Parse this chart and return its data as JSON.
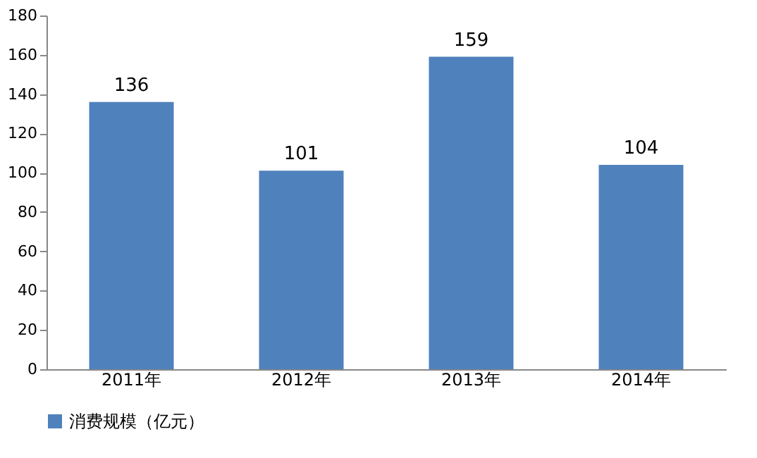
{
  "chart_data": {
    "type": "bar",
    "categories": [
      "2011年",
      "2012年",
      "2013年",
      "2014年"
    ],
    "series": [
      {
        "name": "消费规模（亿元）",
        "color": "#4f81bd",
        "values": [
          136,
          101,
          159,
          104
        ]
      }
    ],
    "ylim": [
      0,
      180
    ],
    "yticks": [
      0,
      20,
      40,
      60,
      80,
      100,
      120,
      140,
      160,
      180
    ],
    "grid": false,
    "legend": "bottom",
    "data_labels": true
  }
}
